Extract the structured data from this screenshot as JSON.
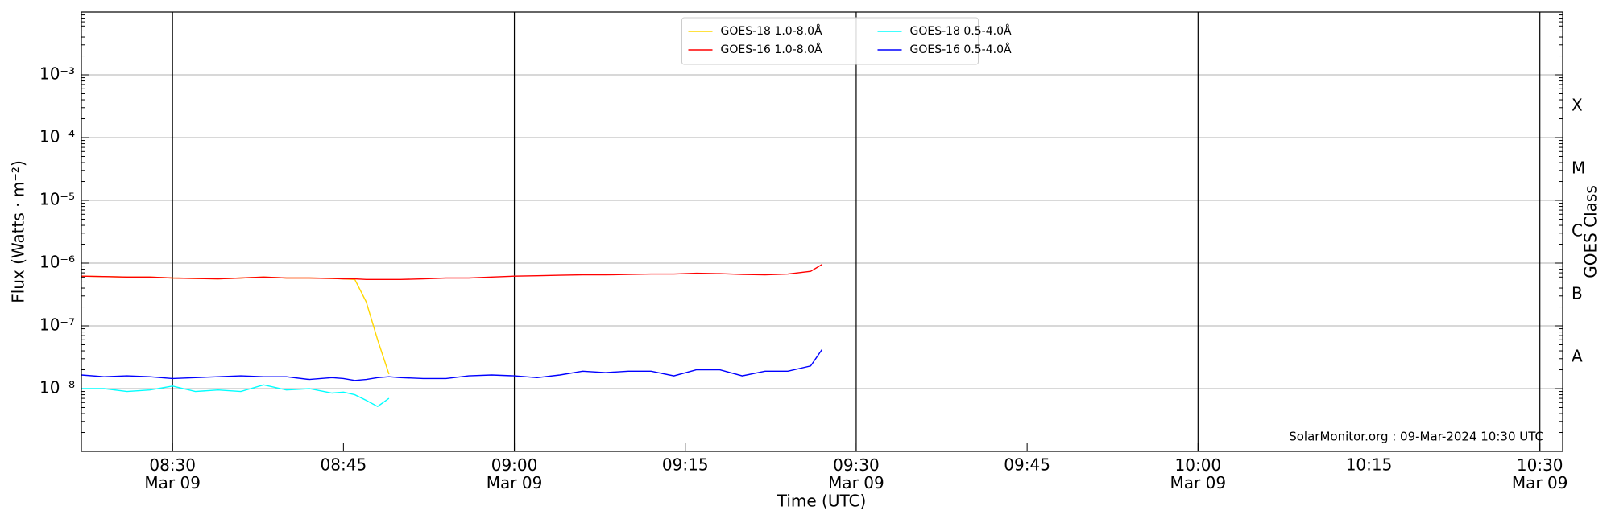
{
  "chart_data": {
    "type": "line",
    "xlabel": "Time (UTC)",
    "ylabel": "Flux (Watts · m⁻²)",
    "y2label": "GOES Class",
    "annotation": "SolarMonitor.org : 09-Mar-2024 10:30 UTC",
    "x": [
      "08:22",
      "08:24",
      "08:26",
      "08:28",
      "08:30",
      "08:32",
      "08:34",
      "08:36",
      "08:38",
      "08:40",
      "08:42",
      "08:44",
      "08:45",
      "08:46",
      "08:47",
      "08:48",
      "08:49",
      "08:50",
      "08:52",
      "08:54",
      "08:56",
      "08:58",
      "09:00",
      "09:02",
      "09:04",
      "09:06",
      "09:08",
      "09:10",
      "09:12",
      "09:14",
      "09:16",
      "09:18",
      "09:20",
      "09:22",
      "09:24",
      "09:26",
      "09:27"
    ],
    "series": [
      {
        "name": "GOES-18 1.0-8.0Å",
        "color": "#ffd700",
        "values": [
          6.2e-07,
          6.1e-07,
          6e-07,
          6e-07,
          5.8e-07,
          5.7e-07,
          5.6e-07,
          5.8e-07,
          6e-07,
          5.8e-07,
          5.8e-07,
          5.7e-07,
          5.6e-07,
          5.5e-07,
          2.4e-07,
          6e-08,
          1.7e-08,
          null,
          null,
          null,
          null,
          null,
          null,
          null,
          null,
          null,
          null,
          null,
          null,
          null,
          null,
          null,
          null,
          null,
          null,
          null,
          null
        ]
      },
      {
        "name": "GOES-16 1.0-8.0Å",
        "color": "#ff0000",
        "values": [
          6.2e-07,
          6.1e-07,
          6e-07,
          6e-07,
          5.8e-07,
          5.7e-07,
          5.6e-07,
          5.8e-07,
          6e-07,
          5.8e-07,
          5.8e-07,
          5.7e-07,
          5.6e-07,
          5.6e-07,
          5.5e-07,
          5.5e-07,
          5.5e-07,
          5.5e-07,
          5.6e-07,
          5.8e-07,
          5.8e-07,
          6e-07,
          6.2e-07,
          6.3e-07,
          6.4e-07,
          6.5e-07,
          6.5e-07,
          6.6e-07,
          6.7e-07,
          6.7e-07,
          6.9e-07,
          6.8e-07,
          6.6e-07,
          6.5e-07,
          6.7e-07,
          7.4e-07,
          9.5e-07
        ]
      },
      {
        "name": "GOES-18 0.5-4.0Å",
        "color": "#00ffff",
        "values": [
          1e-08,
          1e-08,
          9e-09,
          9.5e-09,
          1.1e-08,
          9e-09,
          9.5e-09,
          9e-09,
          1.15e-08,
          9.5e-09,
          1e-08,
          8.5e-09,
          8.8e-09,
          8e-09,
          6.5e-09,
          5.2e-09,
          7e-09,
          null,
          null,
          null,
          null,
          null,
          null,
          null,
          null,
          null,
          null,
          null,
          null,
          null,
          null,
          null,
          null,
          null,
          null,
          null,
          null
        ]
      },
      {
        "name": "GOES-16 0.5-4.0Å",
        "color": "#0000ff",
        "values": [
          1.65e-08,
          1.55e-08,
          1.6e-08,
          1.55e-08,
          1.45e-08,
          1.5e-08,
          1.55e-08,
          1.6e-08,
          1.55e-08,
          1.55e-08,
          1.4e-08,
          1.5e-08,
          1.45e-08,
          1.35e-08,
          1.4e-08,
          1.5e-08,
          1.55e-08,
          1.5e-08,
          1.45e-08,
          1.45e-08,
          1.6e-08,
          1.65e-08,
          1.6e-08,
          1.5e-08,
          1.65e-08,
          1.9e-08,
          1.8e-08,
          1.9e-08,
          1.9e-08,
          1.6e-08,
          2e-08,
          2e-08,
          1.6e-08,
          1.9e-08,
          1.9e-08,
          2.3e-08,
          4.2e-08
        ]
      }
    ],
    "xlim": [
      "08:22",
      "10:32"
    ],
    "xticks": [
      {
        "value": "08:30",
        "label": "08:30\nMar 09"
      },
      "08:45",
      {
        "value": "09:00",
        "label": "09:00\nMar 09"
      },
      "09:15",
      {
        "value": "09:30",
        "label": "09:30\nMar 09"
      },
      "09:45",
      {
        "value": "10:00",
        "label": "10:00\nMar 09"
      },
      "10:15",
      {
        "value": "10:30",
        "label": "10:30\nMar 09"
      }
    ],
    "vlines": [
      "08:30",
      "09:00",
      "09:30",
      "10:00",
      "10:30"
    ],
    "ylim": [
      1e-09,
      0.01
    ],
    "yscale": "log",
    "yticks": [
      {
        "value": 1e-08,
        "label": "10⁻⁸"
      },
      {
        "value": 1e-07,
        "label": "10⁻⁷"
      },
      {
        "value": 1e-06,
        "label": "10⁻⁶"
      },
      {
        "value": 1e-05,
        "label": "10⁻⁵"
      },
      {
        "value": 0.0001,
        "label": "10⁻⁴"
      },
      {
        "value": 0.001,
        "label": "10⁻³"
      }
    ],
    "y2lim": [
      1e-09,
      0.01
    ],
    "y2ticks": [
      {
        "value": 3.16e-08,
        "label": "A"
      },
      {
        "value": 3.16e-07,
        "label": "B"
      },
      {
        "value": 3.16e-06,
        "label": "C"
      },
      {
        "value": 3.16e-05,
        "label": "M"
      },
      {
        "value": 0.000316,
        "label": "X"
      }
    ],
    "grid": true,
    "legend": "upper center"
  }
}
